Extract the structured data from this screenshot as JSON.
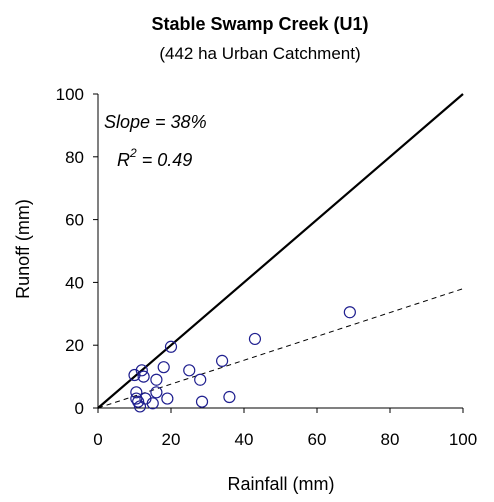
{
  "chart_data": {
    "type": "scatter",
    "title": "Stable Swamp Creek (U1)",
    "subtitle": "(442 ha Urban Catchment)",
    "xlabel": "Rainfall (mm)",
    "ylabel": "Runoff (mm)",
    "xlim": [
      0,
      100
    ],
    "ylim": [
      0,
      100
    ],
    "x_ticks": [
      "0",
      "20",
      "40",
      "60",
      "80",
      "100"
    ],
    "y_ticks": [
      "0",
      "20",
      "40",
      "60",
      "80",
      "100"
    ],
    "grid": false,
    "annotations": {
      "slope": "Slope = 38%",
      "r2_prefix": "R",
      "r2_sup": "2",
      "r2_suffix": " = 0.49"
    },
    "lines": [
      {
        "style": "solid",
        "x": [
          0,
          100
        ],
        "y": [
          0,
          100
        ]
      },
      {
        "style": "dashed",
        "x": [
          0,
          100
        ],
        "y": [
          0,
          38
        ]
      }
    ],
    "points": [
      {
        "x": 10,
        "y": 10.5
      },
      {
        "x": 12,
        "y": 12
      },
      {
        "x": 12.5,
        "y": 10
      },
      {
        "x": 10.5,
        "y": 5
      },
      {
        "x": 10.5,
        "y": 3
      },
      {
        "x": 11,
        "y": 2
      },
      {
        "x": 11.5,
        "y": 0.5
      },
      {
        "x": 13,
        "y": 3
      },
      {
        "x": 15,
        "y": 1.5
      },
      {
        "x": 16,
        "y": 5
      },
      {
        "x": 16,
        "y": 9
      },
      {
        "x": 18,
        "y": 13
      },
      {
        "x": 19,
        "y": 3
      },
      {
        "x": 20,
        "y": 19.5
      },
      {
        "x": 25,
        "y": 12
      },
      {
        "x": 28,
        "y": 9
      },
      {
        "x": 28.5,
        "y": 2
      },
      {
        "x": 34,
        "y": 15
      },
      {
        "x": 36,
        "y": 3.5
      },
      {
        "x": 43,
        "y": 22
      },
      {
        "x": 69,
        "y": 30.5
      }
    ],
    "marker_color": "#1f1f8f"
  }
}
